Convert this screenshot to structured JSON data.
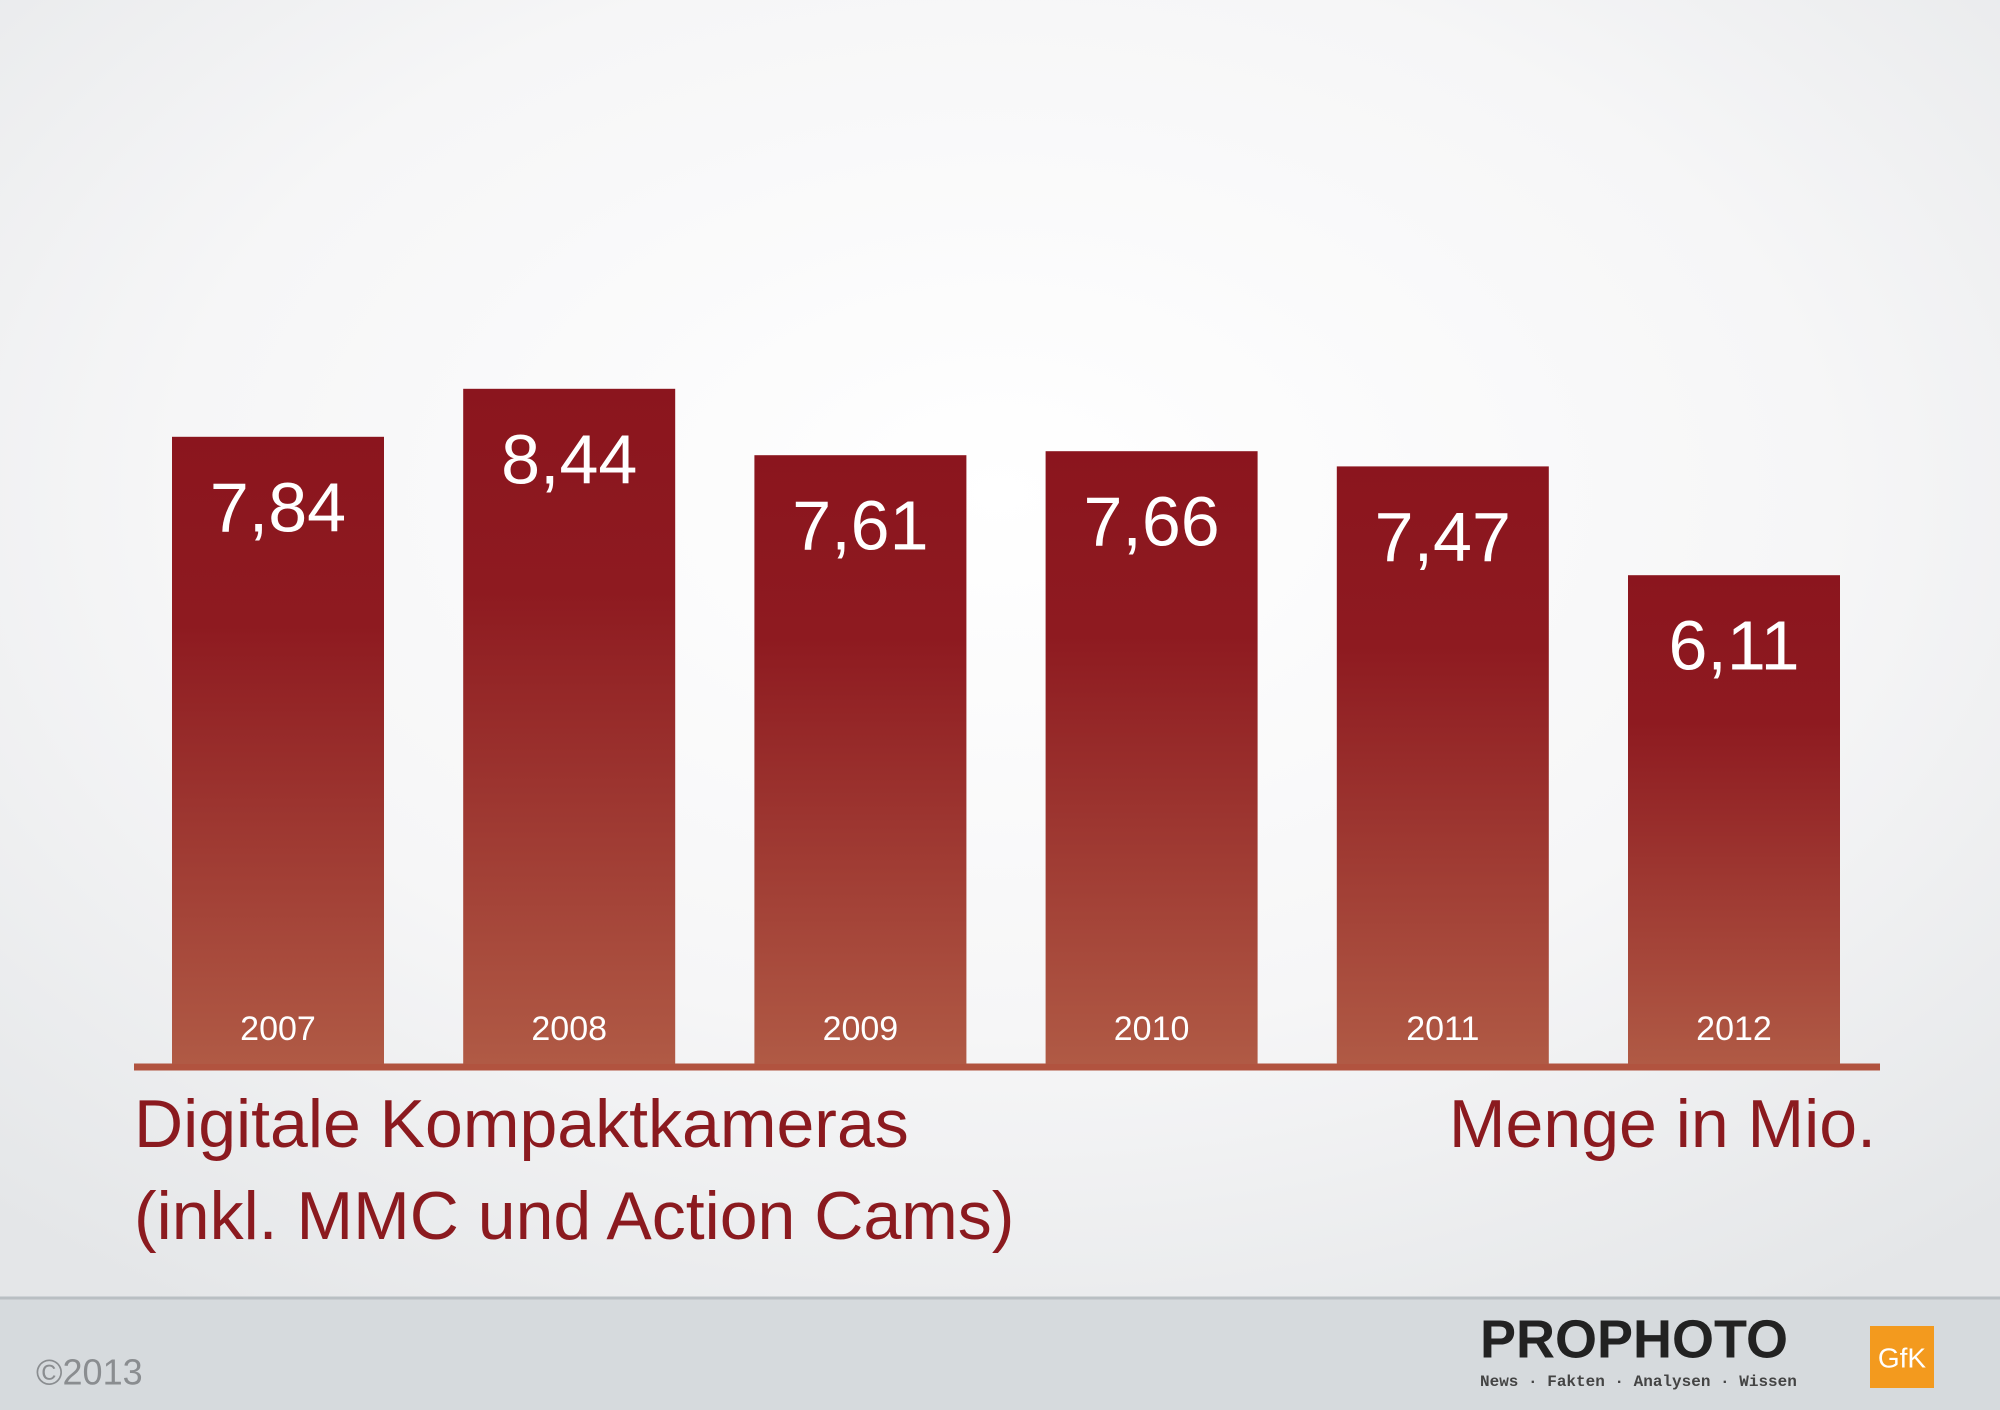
{
  "chart_data": {
    "type": "bar",
    "title": "Digitale Kompaktkameras",
    "subtitle": "(inkl. MMC und Action Cams)",
    "y_label": "Menge in Mio.",
    "categories": [
      "2007",
      "2008",
      "2009",
      "2010",
      "2011",
      "2012"
    ],
    "values": [
      7.84,
      8.44,
      7.61,
      7.66,
      7.47,
      6.11
    ],
    "value_labels": [
      "7,84",
      "8,44",
      "7,61",
      "7,66",
      "7,47",
      "6,11"
    ],
    "color": "#8b151e"
  },
  "footer": {
    "copyright": "©2013",
    "brand": "PROPHOTO",
    "tagline": "News · Fakten · Analysen · Wissen",
    "partner": "GfK"
  }
}
